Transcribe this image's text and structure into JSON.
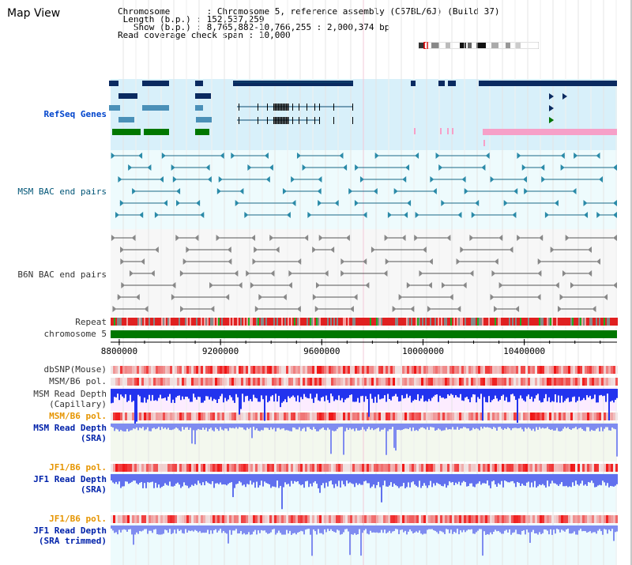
{
  "page": {
    "title": "Map View"
  },
  "info": {
    "chromosome_label": "Chromosome",
    "chromosome_value": "Chromosome 5, reference assembly (C57BL/6J) (Build 37)",
    "length_label": "Length (b.p.)",
    "length_value": "152,537,259",
    "show_label": "Show (b.p.)",
    "show_value": "8,765,882-10,766,255 : 2,000,374 bp",
    "coverage_label": "Read coverage check span",
    "coverage_value": "10,000"
  },
  "tracks": {
    "refseq": "RefSeq Genes",
    "msm_bac": "MSM BAC end pairs",
    "b6n_bac": "B6N BAC end pairs",
    "repeat": "Repeat",
    "chromosome": "chromosome 5",
    "dbsnp": "dbSNP(Mouse)",
    "msm_b6_pol_1": "MSM/B6 pol.",
    "msm_depth_cap_1": "MSM Read Depth",
    "msm_depth_cap_2": "(Capillary)",
    "msm_b6_pol_2": "MSM/B6 pol.",
    "msm_depth_sra_1": "MSM Read Depth",
    "msm_depth_sra_2": "(SRA)",
    "jf1_b6_pol_1": "JF1/B6 pol.",
    "jf1_depth_sra_1": "JF1 Read Depth",
    "jf1_depth_sra_2": "(SRA)",
    "jf1_b6_pol_2": "JF1/B6 pol.",
    "jf1_depth_trim_1": "JF1 Read Depth",
    "jf1_depth_trim_2": "(SRA trimmed)"
  },
  "axis": {
    "ticks": [
      "8800000",
      "9200000",
      "9600000",
      "10000000",
      "10400000"
    ],
    "tick_values": [
      8800000,
      9200000,
      9600000,
      10000000,
      10400000
    ],
    "range": [
      8765882,
      10766255
    ]
  },
  "colors": {
    "refseq_bg": "#d8f0fa",
    "bac_bg": "#eefbfd",
    "msm_bg": "#f3f8ee",
    "jf1_bg": "#edfbfd",
    "chromosome_bar": "#007700",
    "gene_dark": "#0a2a60",
    "gene_mid": "#4a90b8",
    "gene_green": "#007700",
    "gene_pink": "#f6a0c8"
  }
}
